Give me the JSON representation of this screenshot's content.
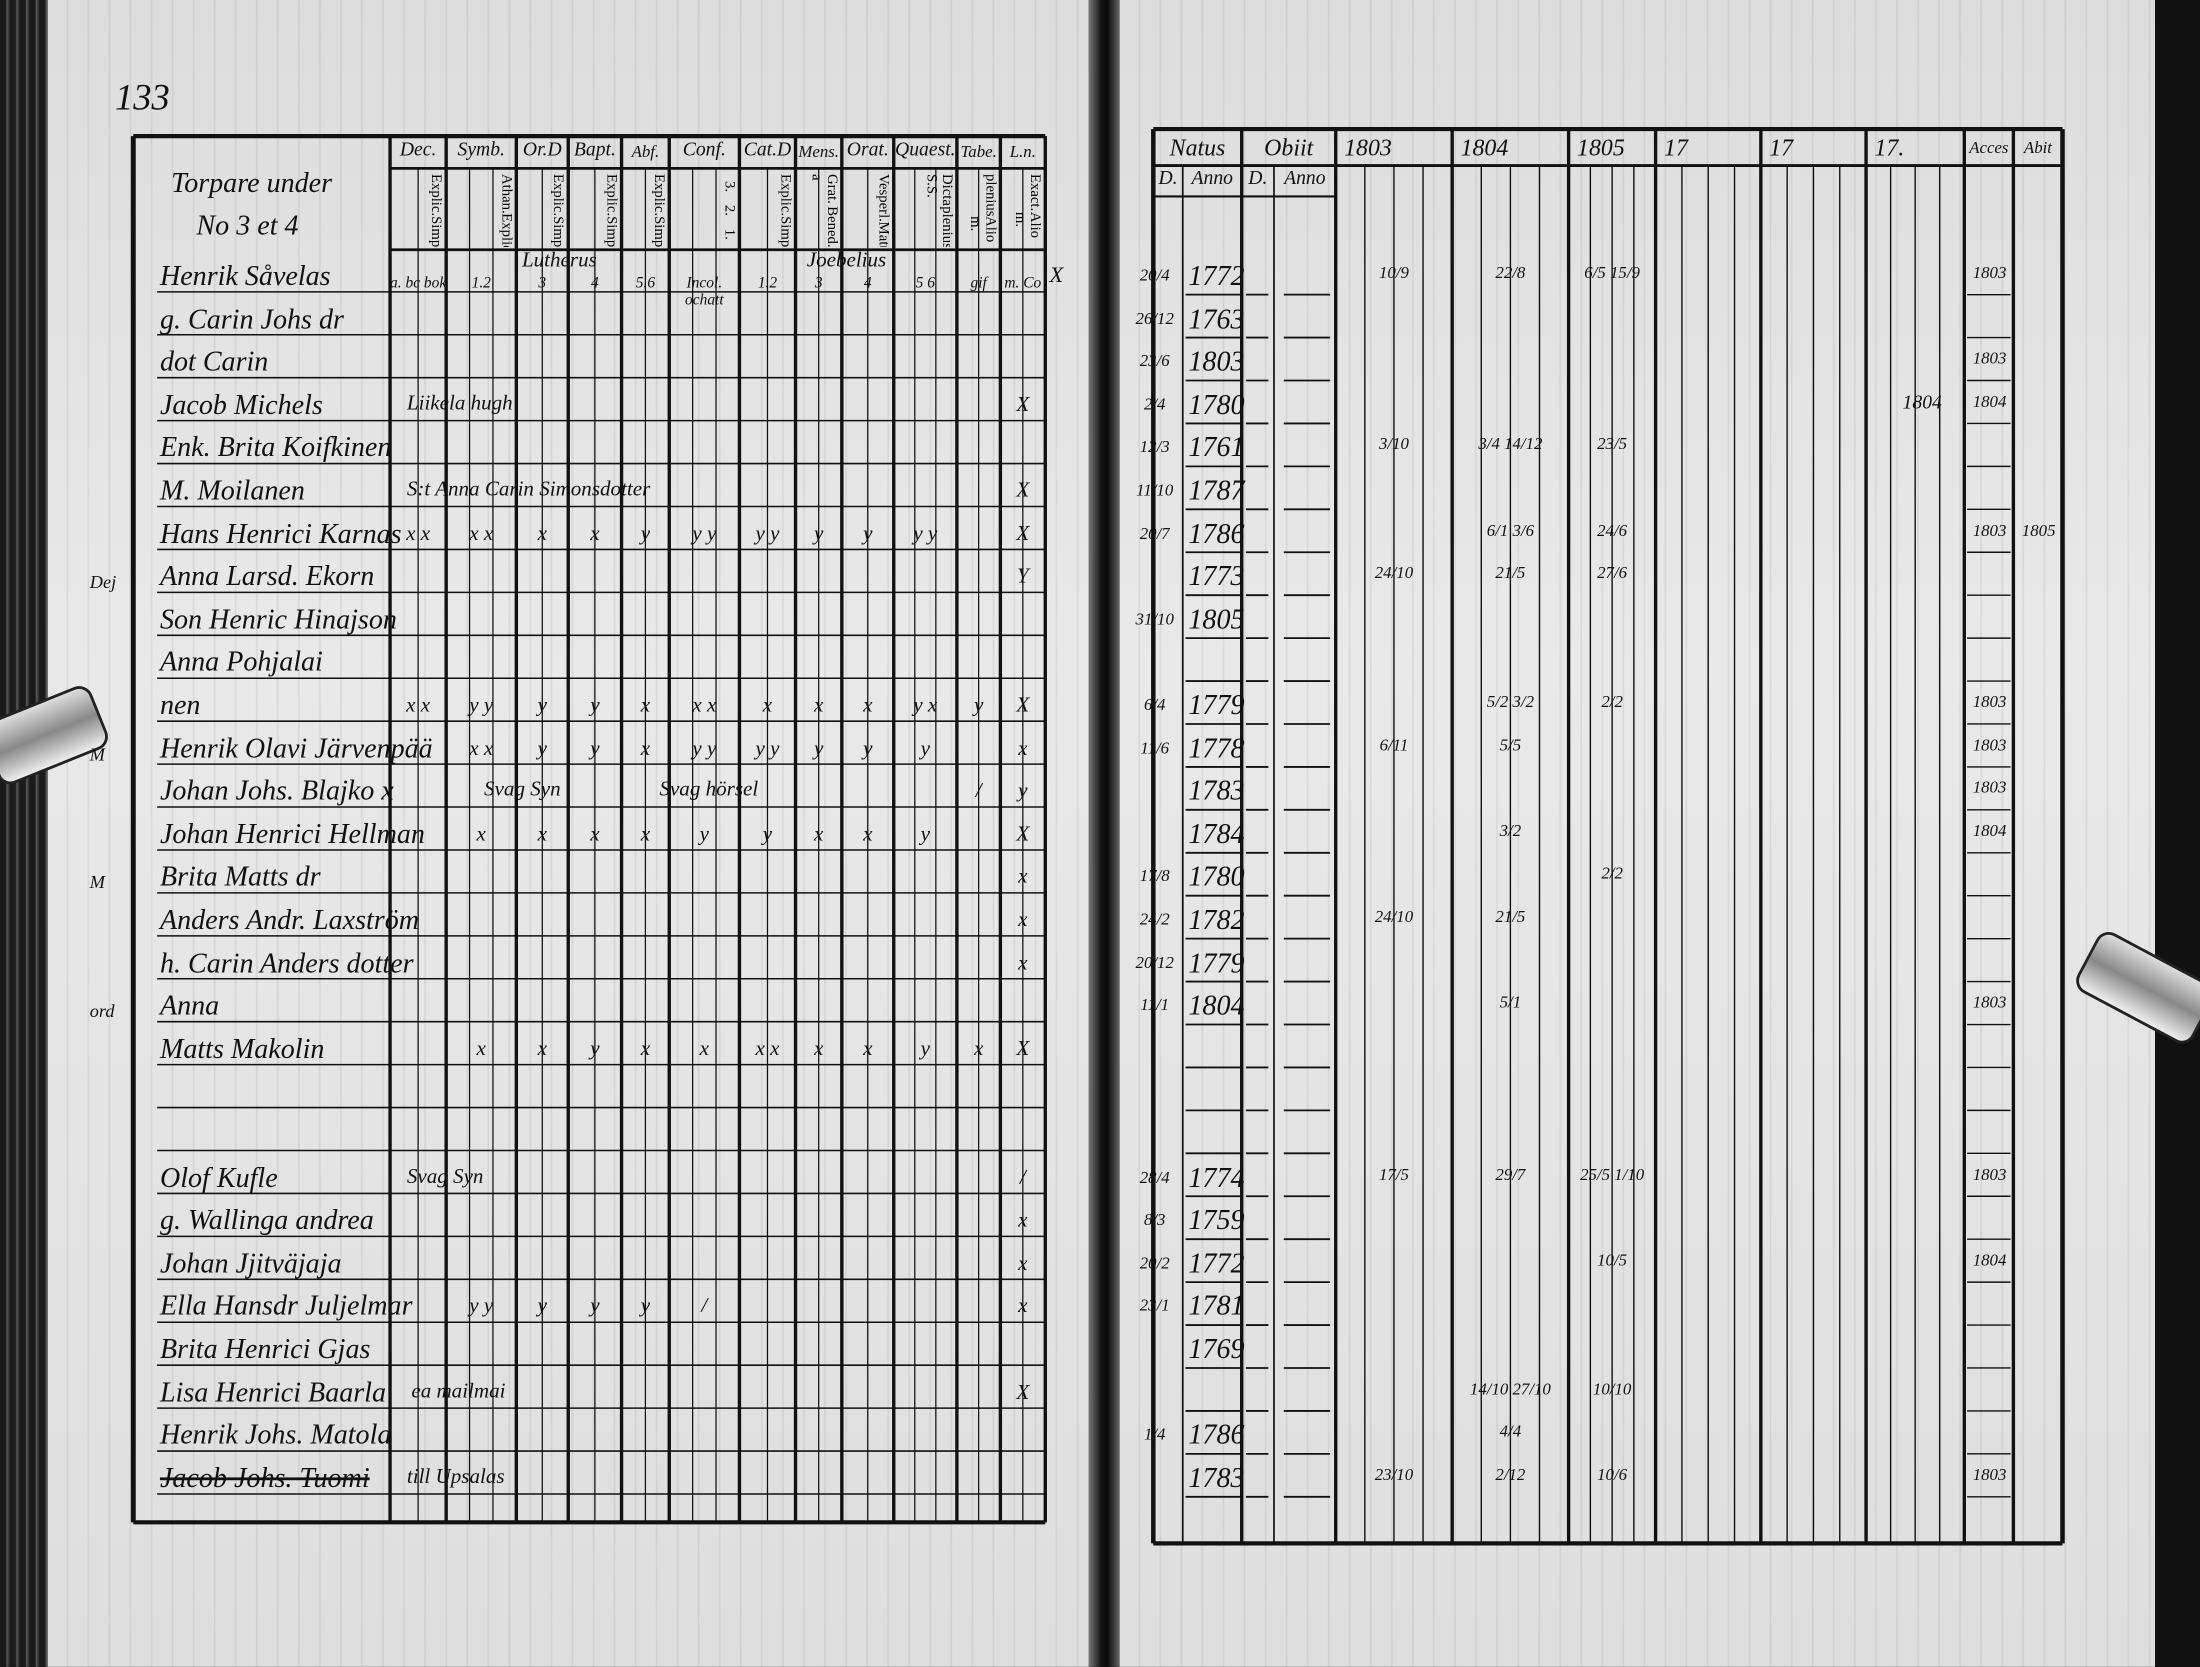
{
  "left_page": {
    "page_number": "133",
    "heading": [
      "Torpare under",
      "No 3 et 4"
    ],
    "columns": [
      {
        "label": "Dec.",
        "sub": [
          "Explic.",
          "Simpl."
        ]
      },
      {
        "label": "Symb.",
        "sub": [
          "Athan.",
          "Explic.",
          "Simpl."
        ]
      },
      {
        "label": "Or.D",
        "sub": [
          "Explic.",
          "Simpl."
        ]
      },
      {
        "label": "Bapt.",
        "sub": [
          "Explic.",
          "Simpl."
        ]
      },
      {
        "label": "Abf.",
        "sub": [
          "Explic.",
          "Simpl."
        ]
      },
      {
        "label": "Conf.",
        "sub": [
          "3.",
          "2.",
          "1."
        ]
      },
      {
        "label": "Cat.D",
        "sub": [
          "Explic.",
          "Simpl."
        ]
      },
      {
        "label": "Mens.",
        "sub": [
          "Grat. a",
          "Bened."
        ]
      },
      {
        "label": "Orat.",
        "sub": [
          "Vesperl.",
          "Matut."
        ]
      },
      {
        "label": "Quaest.",
        "sub": [
          "Dicta S.S.",
          "plenius",
          "Alio m."
        ]
      },
      {
        "label": "Tabe.",
        "sub": [
          "plenius",
          "Alio m."
        ]
      },
      {
        "label": "L.n.",
        "sub": [
          "Exact.",
          "Alio m."
        ]
      }
    ],
    "teachers": [
      "Lutherus",
      "Joebelius"
    ],
    "rows": [
      {
        "name": "Henrik Såvelas",
        "marks": [
          "a. bc bok",
          "1.2",
          "3",
          "4",
          "5.6",
          "Incol. ochatt",
          "1.2",
          "3",
          "4",
          "5 6",
          "gif",
          "m. Co"
        ],
        "outside": "X"
      },
      {
        "name": "g. Carin Johs dr",
        "marks": [],
        "outside": ""
      },
      {
        "name": "dot Carin",
        "marks": [],
        "outside": ""
      },
      {
        "name": "Jacob Michels",
        "note": "Liikela hugh",
        "marks": [
          "",
          "",
          "",
          "",
          "",
          "",
          "",
          "",
          "",
          "",
          "",
          "X"
        ],
        "outside": ""
      },
      {
        "name": "Enk. Brita Koifkinen",
        "marks": [],
        "outside": ""
      },
      {
        "name": "M. Moilanen",
        "note": "S:t Anna Carin Simonsdotter",
        "marks": [
          "",
          "",
          "",
          "",
          "",
          "",
          "",
          "",
          "",
          "",
          "",
          "X"
        ],
        "outside": ""
      },
      {
        "name": "Hans Henrici Karnas",
        "marks": [
          "x x",
          "x x",
          "x",
          "x",
          "y",
          "y y",
          "y y",
          "y",
          "y",
          "y y",
          "",
          "X"
        ],
        "outside": ""
      },
      {
        "name": "Anna Larsd. Ekorn",
        "prefix": "Dej",
        "marks": [
          "",
          "",
          "",
          "",
          "",
          "",
          "",
          "",
          "",
          "",
          "",
          "Y"
        ],
        "outside": ""
      },
      {
        "name": "Son Henric Hinajson",
        "marks": [],
        "outside": ""
      },
      {
        "name": "Anna Pohjalai",
        "marks": [],
        "outside": ""
      },
      {
        "name": "nen",
        "marks": [
          "x x",
          "y y",
          "y",
          "y",
          "x",
          "x x",
          "x",
          "x",
          "x",
          "y x",
          "y",
          "X"
        ],
        "outside": ""
      },
      {
        "name": "Henrik Olavi Järvenpää",
        "prefix": "M",
        "note": "Svag Syn",
        "marks": [
          "",
          "x x",
          "y",
          "y",
          "x",
          "y y",
          "y y",
          "y",
          "y",
          "y",
          "",
          "x"
        ],
        "outside": ""
      },
      {
        "name": "Johan Johs. Blajko x",
        "marks": [
          "",
          "",
          "",
          "",
          "",
          "",
          "",
          "",
          "",
          "",
          "/",
          "y"
        ],
        "outside": ""
      },
      {
        "name": "Johan Henrici Hellman",
        "note": "Svag hörsel",
        "marks": [
          "",
          "x",
          "x",
          "x",
          "x",
          "y",
          "y",
          "x",
          "x",
          "y",
          "",
          "X"
        ],
        "outside": ""
      },
      {
        "name": "Brita Matts dr",
        "prefix": "M",
        "marks": [
          "",
          "",
          "",
          "",
          "",
          "",
          "",
          "",
          "",
          "",
          "",
          "x"
        ],
        "outside": ""
      },
      {
        "name": "Anders Andr. Laxström",
        "marks": [
          "",
          "",
          "",
          "",
          "",
          "",
          "",
          "",
          "",
          "",
          "",
          "x"
        ],
        "outside": ""
      },
      {
        "name": "h. Carin Anders dotter",
        "marks": [
          "",
          "",
          "",
          "",
          "",
          "",
          "",
          "",
          "",
          "",
          "",
          "x"
        ],
        "outside": ""
      },
      {
        "name": "Anna",
        "prefix": "ord",
        "marks": [],
        "outside": ""
      },
      {
        "name": "Matts Makolin",
        "marks": [
          "",
          "x",
          "x",
          "y",
          "x",
          "x",
          "x x",
          "x",
          "x",
          "y",
          "x",
          "X"
        ],
        "outside": ""
      },
      {
        "name": "",
        "marks": [],
        "outside": ""
      },
      {
        "name": "",
        "marks": [],
        "outside": ""
      },
      {
        "name": "Olof Kufle",
        "note": "Svag Syn",
        "marks": [
          "",
          "",
          "",
          "",
          "",
          "",
          "",
          "",
          "",
          "",
          "",
          "/"
        ],
        "outside": ""
      },
      {
        "name": "g. Wallinga andrea",
        "marks": [
          "",
          "",
          "",
          "",
          "",
          "",
          "",
          "",
          "",
          "",
          "",
          "x"
        ],
        "outside": ""
      },
      {
        "name": "Johan Jjitväjaja",
        "marks": [
          "",
          "",
          "",
          "",
          "",
          "",
          "",
          "",
          "",
          "",
          "",
          "x"
        ],
        "outside": ""
      },
      {
        "name": "Ella Hansdr Juljelmar",
        "marks": [
          "",
          "y y",
          "y",
          "y",
          "y",
          "/",
          "",
          "",
          "",
          "",
          "",
          "x"
        ],
        "outside": ""
      },
      {
        "name": "Brita Henrici Gjas",
        "marks": [],
        "outside": ""
      },
      {
        "name": "Lisa Henrici Baarla",
        "note": "ea mailmai",
        "marks": [
          "",
          "",
          "",
          "",
          "",
          "",
          "",
          "",
          "",
          "",
          "",
          "X"
        ],
        "outside": ""
      },
      {
        "name": "Henrik Johs. Matola",
        "marks": [],
        "outside": ""
      },
      {
        "name": "Jacob Johs. Tuomi",
        "struck": true,
        "note": "till Upsalas",
        "marks": [],
        "outside": ""
      }
    ]
  },
  "right_page": {
    "columns": [
      "Natus",
      "Obiit",
      "1803",
      "1804",
      "1805",
      "17",
      "17",
      "17.",
      "Acces",
      "Abit"
    ],
    "natus_sub": [
      "D.",
      "Anno"
    ],
    "obiit_sub": [
      "D.",
      "Anno"
    ],
    "births": [
      {
        "row": 0,
        "day": "20/4",
        "year": "1772"
      },
      {
        "row": 1,
        "day": "26/12",
        "year": "1763"
      },
      {
        "row": 2,
        "day": "23/6",
        "year": "1803"
      },
      {
        "row": 3,
        "day": "2/4",
        "year": "1780"
      },
      {
        "row": 4,
        "day": "12/3",
        "year": "1761"
      },
      {
        "row": 5,
        "day": "11/10",
        "year": "1787"
      },
      {
        "row": 6,
        "day": "20/7",
        "year": "1786"
      },
      {
        "row": 7,
        "day": "",
        "year": "1773"
      },
      {
        "row": 8,
        "day": "31/10",
        "year": "1805"
      },
      {
        "row": 10,
        "day": "6/4",
        "year": "1779"
      },
      {
        "row": 11,
        "day": "11/6",
        "year": "1778"
      },
      {
        "row": 12,
        "day": "",
        "year": "1783"
      },
      {
        "row": 13,
        "day": "",
        "year": "1784"
      },
      {
        "row": 14,
        "day": "17/8",
        "year": "1780"
      },
      {
        "row": 15,
        "day": "24/2",
        "year": "1782"
      },
      {
        "row": 16,
        "day": "20/12",
        "year": "1779"
      },
      {
        "row": 17,
        "day": "11/1",
        "year": "1804"
      },
      {
        "row": 21,
        "day": "28/4",
        "year": "1774"
      },
      {
        "row": 22,
        "day": "8/3",
        "year": "1759"
      },
      {
        "row": 23,
        "day": "20/2",
        "year": "1772"
      },
      {
        "row": 24,
        "day": "23/1",
        "year": "1781"
      },
      {
        "row": 25,
        "day": "",
        "year": "1769"
      },
      {
        "row": 27,
        "day": "1/4",
        "year": "1786"
      },
      {
        "row": 28,
        "day": "",
        "year": "1783"
      }
    ],
    "attendance": [
      {
        "row": 0,
        "col": "1803",
        "text": "10/9"
      },
      {
        "row": 0,
        "col": "1804",
        "text": "22/8"
      },
      {
        "row": 0,
        "col": "1805",
        "text": "6/5 15/9"
      },
      {
        "row": 4,
        "col": "1803",
        "text": "3/10"
      },
      {
        "row": 4,
        "col": "1804",
        "text": "3/4 14/12"
      },
      {
        "row": 4,
        "col": "1805",
        "text": "23/5"
      },
      {
        "row": 6,
        "col": "1804",
        "text": "6/1 3/6"
      },
      {
        "row": 6,
        "col": "1805",
        "text": "24/6"
      },
      {
        "row": 7,
        "col": "1803",
        "text": "24/10"
      },
      {
        "row": 7,
        "col": "1804",
        "text": "21/5"
      },
      {
        "row": 7,
        "col": "1805",
        "text": "27/6"
      },
      {
        "row": 10,
        "col": "1804",
        "text": "5/2 3/2"
      },
      {
        "row": 10,
        "col": "1805",
        "text": "2/2"
      },
      {
        "row": 11,
        "col": "1803",
        "text": "6/11"
      },
      {
        "row": 11,
        "col": "1804",
        "text": "5/5"
      },
      {
        "row": 13,
        "col": "1804",
        "text": "3/2"
      },
      {
        "row": 14,
        "col": "1805",
        "text": "2/2"
      },
      {
        "row": 15,
        "col": "1803",
        "text": "24/10"
      },
      {
        "row": 15,
        "col": "1804",
        "text": "21/5"
      },
      {
        "row": 17,
        "col": "1804",
        "text": "5/1"
      },
      {
        "row": 21,
        "col": "1803",
        "text": "17/5"
      },
      {
        "row": 21,
        "col": "1804",
        "text": "29/7"
      },
      {
        "row": 21,
        "col": "1805",
        "text": "25/5 1/10"
      },
      {
        "row": 23,
        "col": "1805",
        "text": "10/5"
      },
      {
        "row": 26,
        "col": "1804",
        "text": "14/10 27/10"
      },
      {
        "row": 26,
        "col": "1805",
        "text": "10/10"
      },
      {
        "row": 27,
        "col": "1804",
        "text": "4/4"
      },
      {
        "row": 28,
        "col": "1803",
        "text": "23/10"
      },
      {
        "row": 28,
        "col": "1804",
        "text": "2/12"
      },
      {
        "row": 28,
        "col": "1805",
        "text": "10/6"
      }
    ],
    "acces": [
      {
        "row": 0,
        "text": "1803"
      },
      {
        "row": 2,
        "text": "1803"
      },
      {
        "row": 3,
        "text": "1804"
      },
      {
        "row": 6,
        "text": "1803"
      },
      {
        "row": 10,
        "text": "1803"
      },
      {
        "row": 11,
        "text": "1803"
      },
      {
        "row": 12,
        "text": "1803"
      },
      {
        "row": 13,
        "text": "1804"
      },
      {
        "row": 17,
        "text": "1803"
      },
      {
        "row": 21,
        "text": "1803"
      },
      {
        "row": 23,
        "text": "1804"
      },
      {
        "row": 28,
        "text": "1803"
      }
    ],
    "abit": [
      {
        "row": 6,
        "text": "1805"
      }
    ],
    "other_notes": [
      {
        "row": 3,
        "col": "17.",
        "text": "1804"
      }
    ]
  }
}
